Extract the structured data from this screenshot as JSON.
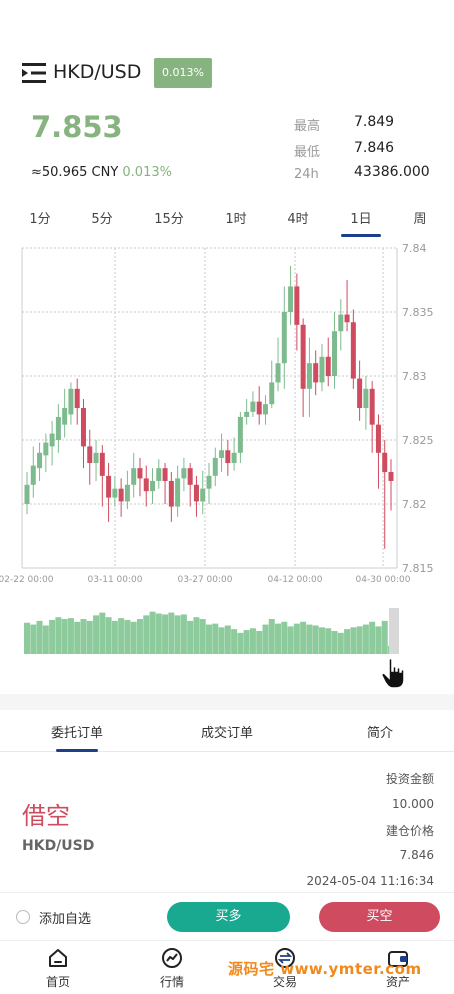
{
  "header": {
    "pair": "HKD/USD",
    "change_badge": "0.013%",
    "price": "7.853",
    "cny_prefix": "≈50.965 CNY",
    "cny_change": "0.013%",
    "stats": [
      {
        "label": "最高",
        "value": "7.849"
      },
      {
        "label": "最低",
        "value": "7.846"
      },
      {
        "label": "24h",
        "value": "43386.000"
      }
    ]
  },
  "timeframes": {
    "items": [
      "1分",
      "5分",
      "15分",
      "1时",
      "4时",
      "1日",
      "周"
    ],
    "active": "1日"
  },
  "colors": {
    "up": "#7dbb8e",
    "down": "#cf4b5f",
    "accent": "#1d3f8a",
    "badge": "#86b37f",
    "buy": "#19a990",
    "sell": "#cf4b5f"
  },
  "chart_data": {
    "type": "candlestick",
    "y_ticks": [
      "7.84",
      "7.835",
      "7.83",
      "7.825",
      "7.82",
      "7.815"
    ],
    "ylim": [
      7.815,
      7.84
    ],
    "x_ticks": [
      "02-22 00:00",
      "03-11 00:00",
      "03-27 00:00",
      "04-12 00:00",
      "04-30 00:00"
    ],
    "grid": true,
    "candles": [
      [
        7.82,
        7.8215,
        7.8225,
        7.8192
      ],
      [
        7.8215,
        7.823,
        7.8245,
        7.8205
      ],
      [
        7.8228,
        7.824,
        7.8248,
        7.8218
      ],
      [
        7.8238,
        7.8248,
        7.8255,
        7.8225
      ],
      [
        7.8245,
        7.8255,
        7.8265,
        7.823
      ],
      [
        7.825,
        7.8268,
        7.8278,
        7.824
      ],
      [
        7.8262,
        7.8275,
        7.829,
        7.8252
      ],
      [
        7.827,
        7.829,
        7.8295,
        7.8262
      ],
      [
        7.829,
        7.8275,
        7.8298,
        7.8262
      ],
      [
        7.8275,
        7.8245,
        7.8282,
        7.8228
      ],
      [
        7.8245,
        7.8232,
        7.8258,
        7.8215
      ],
      [
        7.8232,
        7.824,
        7.825,
        7.8218
      ],
      [
        7.824,
        7.8222,
        7.8246,
        7.8198
      ],
      [
        7.8222,
        7.8205,
        7.8232,
        7.8186
      ],
      [
        7.8205,
        7.8212,
        7.8222,
        7.8198
      ],
      [
        7.8212,
        7.8202,
        7.822,
        7.819
      ],
      [
        7.8202,
        7.8215,
        7.8226,
        7.8196
      ],
      [
        7.8215,
        7.8228,
        7.824,
        7.8205
      ],
      [
        7.8228,
        7.822,
        7.8236,
        7.8206
      ],
      [
        7.822,
        7.821,
        7.823,
        7.8198
      ],
      [
        7.821,
        7.8218,
        7.8228,
        7.82
      ],
      [
        7.8218,
        7.8228,
        7.8235,
        7.8212
      ],
      [
        7.8228,
        7.8218,
        7.8232,
        7.82
      ],
      [
        7.8218,
        7.8198,
        7.8225,
        7.8186
      ],
      [
        7.8198,
        7.822,
        7.823,
        7.819
      ],
      [
        7.822,
        7.8228,
        7.8236,
        7.821
      ],
      [
        7.8228,
        7.8215,
        7.8232,
        7.8198
      ],
      [
        7.8215,
        7.8202,
        7.8222,
        7.819
      ],
      [
        7.8202,
        7.8212,
        7.8226,
        7.8192
      ],
      [
        7.8212,
        7.8222,
        7.8232,
        7.82
      ],
      [
        7.8222,
        7.8236,
        7.8244,
        7.8214
      ],
      [
        7.8236,
        7.8242,
        7.8255,
        7.8225
      ],
      [
        7.8242,
        7.8232,
        7.825,
        7.8222
      ],
      [
        7.8232,
        7.824,
        7.8252,
        7.8226
      ],
      [
        7.824,
        7.8268,
        7.8272,
        7.8232
      ],
      [
        7.8268,
        7.8272,
        7.8282,
        7.8262
      ],
      [
        7.8272,
        7.828,
        7.8288,
        7.8268
      ],
      [
        7.828,
        7.827,
        7.8292,
        7.8262
      ],
      [
        7.827,
        7.8278,
        7.8285,
        7.8262
      ],
      [
        7.8278,
        7.8295,
        7.8312,
        7.8275
      ],
      [
        7.8295,
        7.831,
        7.833,
        7.8288
      ],
      [
        7.831,
        7.835,
        7.837,
        7.829
      ],
      [
        7.835,
        7.837,
        7.8386,
        7.834
      ],
      [
        7.837,
        7.834,
        7.838,
        7.832
      ],
      [
        7.834,
        7.829,
        7.8345,
        7.8268
      ],
      [
        7.829,
        7.831,
        7.833,
        7.8268
      ],
      [
        7.831,
        7.8295,
        7.832,
        7.8285
      ],
      [
        7.8295,
        7.8315,
        7.8325,
        7.8288
      ],
      [
        7.8315,
        7.83,
        7.833,
        7.8292
      ],
      [
        7.83,
        7.8335,
        7.835,
        7.829
      ],
      [
        7.8335,
        7.8348,
        7.836,
        7.832
      ],
      [
        7.8348,
        7.8342,
        7.8375,
        7.8335
      ],
      [
        7.8342,
        7.8298,
        7.8352,
        7.829
      ],
      [
        7.8298,
        7.8275,
        7.8312,
        7.8265
      ],
      [
        7.8275,
        7.829,
        7.83,
        7.8258
      ],
      [
        7.829,
        7.8262,
        7.8296,
        7.824
      ],
      [
        7.8262,
        7.824,
        7.827,
        7.8212
      ],
      [
        7.824,
        7.8225,
        7.825,
        7.8165
      ],
      [
        7.8225,
        7.8218,
        7.8235,
        7.8195
      ]
    ],
    "volumes": [
      0.68,
      0.64,
      0.72,
      0.62,
      0.74,
      0.8,
      0.76,
      0.78,
      0.7,
      0.76,
      0.72,
      0.84,
      0.9,
      0.8,
      0.72,
      0.78,
      0.74,
      0.7,
      0.76,
      0.84,
      0.92,
      0.88,
      0.86,
      0.9,
      0.84,
      0.86,
      0.72,
      0.8,
      0.76,
      0.64,
      0.66,
      0.58,
      0.62,
      0.54,
      0.46,
      0.52,
      0.56,
      0.5,
      0.64,
      0.76,
      0.66,
      0.7,
      0.6,
      0.66,
      0.7,
      0.64,
      0.62,
      0.58,
      0.56,
      0.5,
      0.46,
      0.54,
      0.58,
      0.6,
      0.64,
      0.7,
      0.6,
      0.72,
      0.18
    ]
  },
  "tabs": {
    "items": [
      "委托订单",
      "成交订单",
      "简介"
    ],
    "active": "委托订单"
  },
  "order": {
    "side": "借空",
    "pair": "HKD/USD",
    "invest_label": "投资金额",
    "invest_value": "10.000",
    "open_price_label": "建仓价格",
    "open_price_value": "7.846",
    "time": "2024-05-04 11:16:34"
  },
  "actions": {
    "favorite": "添加自选",
    "buy": "买多",
    "sell": "买空"
  },
  "nav": [
    {
      "label": "首页",
      "icon": "home-icon"
    },
    {
      "label": "行情",
      "icon": "market-icon"
    },
    {
      "label": "交易",
      "icon": "trade-icon"
    },
    {
      "label": "资产",
      "icon": "wallet-icon"
    }
  ],
  "watermark": "源码宅 www.ymter.com"
}
